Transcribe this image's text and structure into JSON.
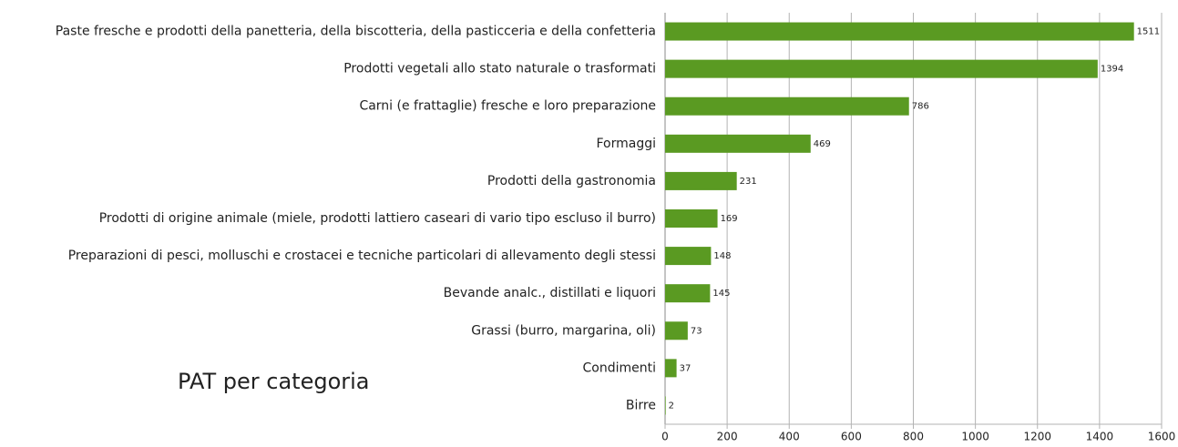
{
  "chart_data": {
    "type": "bar",
    "orientation": "horizontal",
    "title": "PAT per categoria",
    "categories": [
      "Paste fresche e prodotti della panetteria, della biscotteria, della pasticceria e della confetteria",
      "Prodotti vegetali allo stato naturale o trasformati",
      "Carni (e frattaglie) fresche e loro preparazione",
      "Formaggi",
      "Prodotti della gastronomia",
      "Prodotti di origine animale (miele, prodotti lattiero caseari di vario tipo escluso il burro)",
      "Preparazioni di pesci, molluschi e crostacei e tecniche particolari di allevamento degli stessi",
      "Bevande analc., distillati e liquori",
      "Grassi (burro, margarina, oli)",
      "Condimenti",
      "Birre"
    ],
    "values": [
      1511,
      1394,
      786,
      469,
      231,
      169,
      148,
      145,
      73,
      37,
      2
    ],
    "color": "#5a9a22",
    "xlim": [
      0,
      1600
    ],
    "xticks": [
      0,
      200,
      400,
      600,
      800,
      1000,
      1200,
      1400,
      1600
    ],
    "grid": true
  }
}
